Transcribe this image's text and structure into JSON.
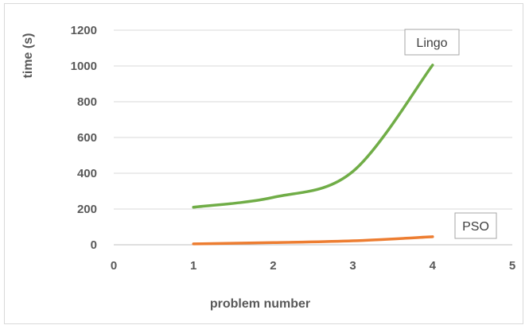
{
  "chart_data": {
    "type": "line",
    "x": [
      1,
      2,
      3,
      4
    ],
    "series": [
      {
        "name": "Lingo",
        "values": [
          210,
          265,
          410,
          1005
        ],
        "color": "#70ad47"
      },
      {
        "name": "PSO",
        "values": [
          5,
          12,
          22,
          45
        ],
        "color": "#ed7d31"
      }
    ],
    "xlabel": "problem number",
    "ylabel": "time (s)",
    "xlim": [
      0,
      5
    ],
    "ylim": [
      0,
      1200
    ],
    "x_ticks": [
      "0",
      "1",
      "2",
      "3",
      "4",
      "5"
    ],
    "y_ticks": [
      "0",
      "200",
      "400",
      "600",
      "800",
      "1000",
      "1200"
    ],
    "grid": "horizontal",
    "smooth": true,
    "annotations": [
      "Lingo",
      "PSO"
    ]
  }
}
